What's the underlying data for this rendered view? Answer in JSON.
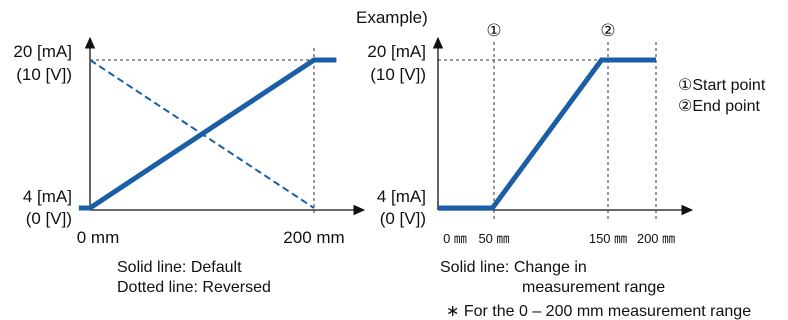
{
  "chart_data": [
    {
      "type": "line",
      "x_unit": "mm",
      "y_ticks": [
        {
          "id": "low",
          "label_top": "4 [mA]",
          "label_bottom": "(0 [V])"
        },
        {
          "id": "high",
          "label_top": "20 [mA]",
          "label_bottom": "(10 [V])"
        }
      ],
      "x_ticks": [
        {
          "value": 0,
          "label": "0 mm"
        },
        {
          "value": 200,
          "label": "200 mm"
        }
      ],
      "series": [
        {
          "style": "solid",
          "points": [
            [
              -10,
              4
            ],
            [
              0,
              4
            ],
            [
              200,
              20
            ],
            [
              220,
              20
            ]
          ]
        },
        {
          "style": "dotted",
          "points": [
            [
              0,
              20
            ],
            [
              200,
              4
            ]
          ]
        }
      ],
      "caption_lines": [
        "Solid line: Default",
        "Dotted line: Reversed"
      ]
    },
    {
      "type": "line",
      "x_unit": "mm",
      "title": "Example)",
      "y_ticks": [
        {
          "id": "low",
          "label_top": "4 [mA]",
          "label_bottom": "(0 [V])"
        },
        {
          "id": "high",
          "label_top": "20 [mA]",
          "label_bottom": "(10 [V])"
        }
      ],
      "x_ticks": [
        {
          "value": 0,
          "label": "0 ㎜"
        },
        {
          "value": 50,
          "label": "50 ㎜"
        },
        {
          "value": 150,
          "label": "150 ㎜"
        },
        {
          "value": 200,
          "label": "200 ㎜"
        }
      ],
      "markers": [
        {
          "x": 50,
          "label": "①"
        },
        {
          "x": 150,
          "label": "②"
        }
      ],
      "series": [
        {
          "style": "solid",
          "points": [
            [
              0,
              4
            ],
            [
              50,
              4
            ],
            [
              150,
              20
            ],
            [
              200,
              20
            ]
          ]
        }
      ],
      "legend_lines": [
        "①Start point",
        "②End point"
      ],
      "caption_lines": [
        "Solid line: Change in",
        "measurement range"
      ]
    }
  ],
  "footnote": "∗ For the 0 – 200 mm measurement range",
  "colors": {
    "line": "#1a5fa5",
    "axis": "#111111"
  }
}
